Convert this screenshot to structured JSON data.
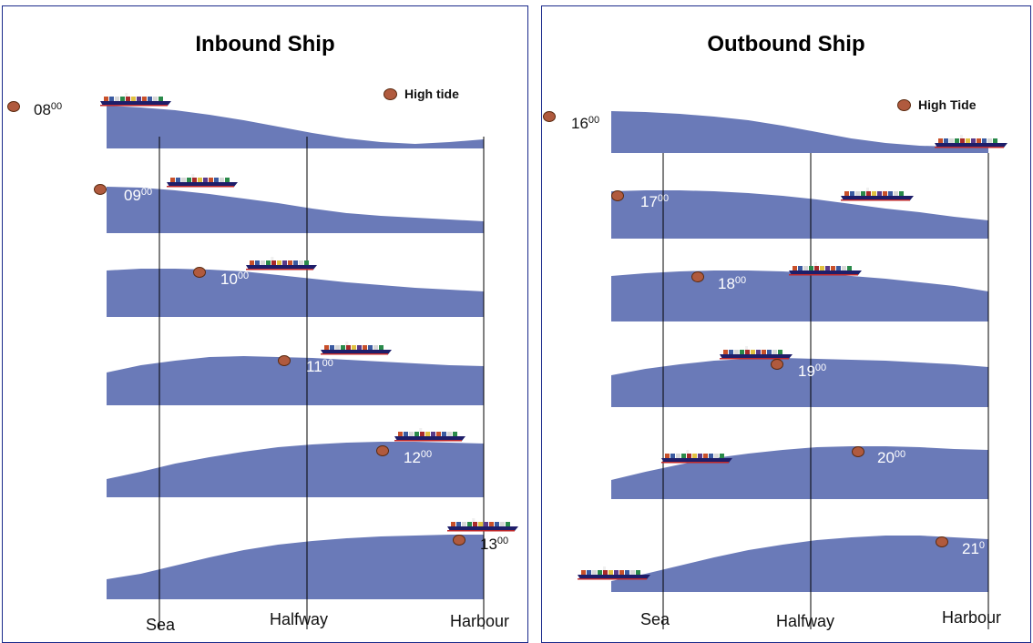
{
  "inbound": {
    "title": "Inbound Ship",
    "legend": "High tide",
    "times": [
      {
        "h": "08",
        "m": "00"
      },
      {
        "h": "09",
        "m": "00"
      },
      {
        "h": "10",
        "m": "00"
      },
      {
        "h": "11",
        "m": "00"
      },
      {
        "h": "12",
        "m": "00"
      },
      {
        "h": "13",
        "m": "00"
      }
    ],
    "axis": {
      "sea": "Sea",
      "halfway": "Halfway",
      "harbour": "Harbour"
    }
  },
  "outbound": {
    "title": "Outbound Ship",
    "legend": "High Tide",
    "times": [
      {
        "h": "16",
        "m": "00"
      },
      {
        "h": "17",
        "m": "00"
      },
      {
        "h": "18",
        "m": "00"
      },
      {
        "h": "19",
        "m": "00"
      },
      {
        "h": "20",
        "m": "00"
      },
      {
        "h": "21",
        "m": "0"
      }
    ],
    "axis": {
      "sea": "Sea",
      "halfway": "Halfway",
      "harbour": "Harbour"
    }
  },
  "colors": {
    "water": "#6a7ab8",
    "tide_marker": "#b05a3e",
    "ship_hull": "#1e1e6a"
  }
}
